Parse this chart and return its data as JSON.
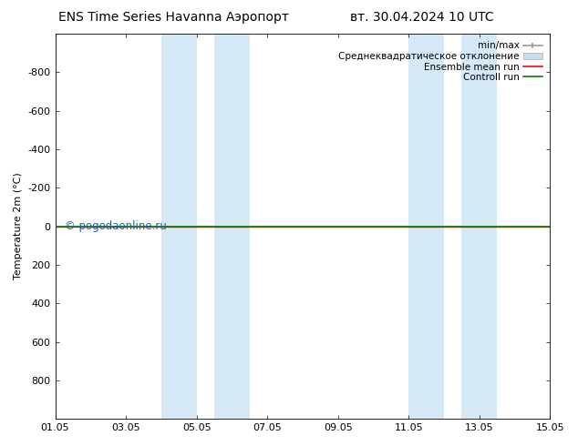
{
  "title_left": "ENS Time Series Havanna Аэропорт",
  "title_right": "вт. 30.04.2024 10 UTC",
  "ylabel": "Temperature 2m (°C)",
  "ylim_bottom": 1000,
  "ylim_top": -1000,
  "xtick_labels": [
    "01.05",
    "03.05",
    "05.05",
    "07.05",
    "09.05",
    "11.05",
    "13.05",
    "15.05"
  ],
  "xtick_positions": [
    0,
    2,
    4,
    6,
    8,
    10,
    12,
    14
  ],
  "ytick_positions": [
    -800,
    -600,
    -400,
    -200,
    0,
    200,
    400,
    600,
    800
  ],
  "shade_regions": [
    {
      "x_start": 3.0,
      "x_end": 4.0
    },
    {
      "x_start": 4.5,
      "x_end": 5.5
    },
    {
      "x_start": 10.0,
      "x_end": 11.0
    },
    {
      "x_start": 11.5,
      "x_end": 12.5
    }
  ],
  "shade_color": "#d4e8f5",
  "line_y": 0.0,
  "line_color_mean": "#ff0000",
  "line_color_control": "#008000",
  "watermark": "© pogodaonline.ru",
  "watermark_color": "#1a5fb4",
  "legend_labels": [
    "min/max",
    "Среднеквадратическое отклонение",
    "Ensemble mean run",
    "Controll run"
  ],
  "legend_colors": [
    "#999999",
    "#c8dded",
    "#ff0000",
    "#008000"
  ],
  "background_color": "#ffffff",
  "title_fontsize": 10,
  "label_fontsize": 8,
  "tick_fontsize": 8
}
